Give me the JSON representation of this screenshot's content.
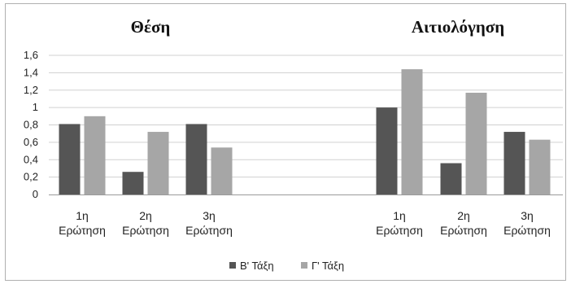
{
  "colors": {
    "series_1": "#555555",
    "series_2": "#a6a6a6",
    "grid": "#d0d0d0",
    "axis": "#9a9a9a",
    "frame": "#b0b0b0"
  },
  "chart_data": {
    "type": "bar",
    "ylim": [
      0,
      1.6
    ],
    "y_ticks": [
      "0",
      "0,2",
      "0,4",
      "0,6",
      "0,8",
      "1",
      "1,2",
      "1,4",
      "1,6"
    ],
    "grid": true,
    "legend_position": "bottom-center",
    "legend": [
      "Β' Τάξη",
      "Γ' Τάξη"
    ],
    "panels": [
      {
        "title": "Θέση",
        "categories": [
          [
            "1η",
            "Ερώτηση"
          ],
          [
            "2η",
            "Ερώτηση"
          ],
          [
            "3η",
            "Ερώτηση"
          ]
        ],
        "series": [
          {
            "name": "Β' Τάξη",
            "values": [
              0.81,
              0.26,
              0.81
            ]
          },
          {
            "name": "Γ' Τάξη",
            "values": [
              0.9,
              0.72,
              0.54
            ]
          }
        ]
      },
      {
        "title": "Αιτιολόγηση",
        "categories": [
          [
            "1η",
            "Ερώτηση"
          ],
          [
            "2η",
            "Ερώτηση"
          ],
          [
            "3η",
            "Ερώτηση"
          ]
        ],
        "series": [
          {
            "name": "Β' Τάξη",
            "values": [
              1.0,
              0.36,
              0.72
            ]
          },
          {
            "name": "Γ' Τάξη",
            "values": [
              1.44,
              1.17,
              0.63
            ]
          }
        ]
      }
    ]
  }
}
